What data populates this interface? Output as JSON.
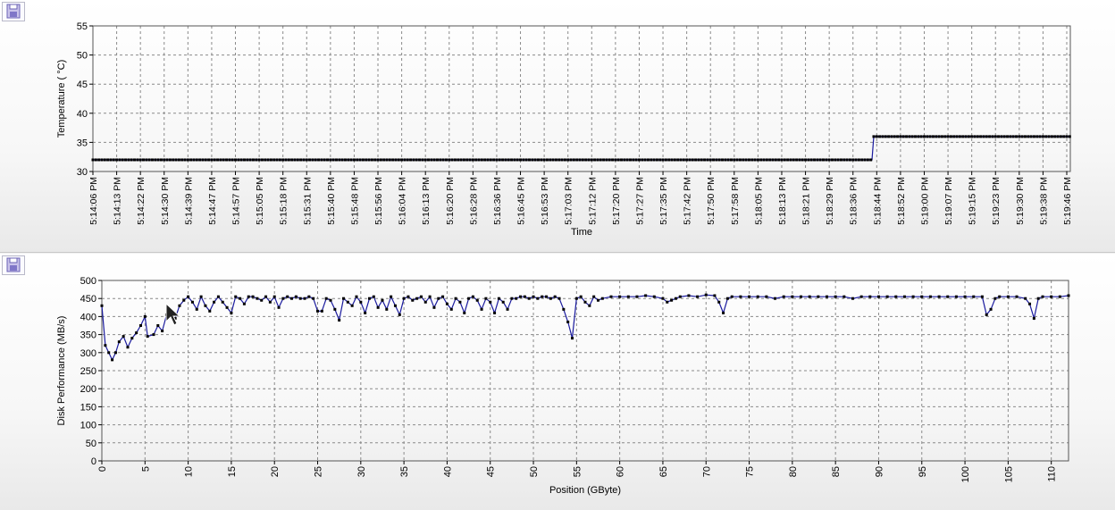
{
  "icons": {
    "save": "floppy-disk-icon"
  },
  "colors": {
    "line": "#1a1a9e",
    "marker": "#000000",
    "grid": "#8a8a8a",
    "background": "#f0f0f0"
  },
  "chart_data": [
    {
      "type": "line",
      "title": "",
      "xlabel": "Time",
      "ylabel": "Temperature ( °C)",
      "ylim": [
        30,
        55
      ],
      "yticks": [
        30,
        35,
        40,
        45,
        50,
        55
      ],
      "grid": true,
      "x": [
        "5:14:06 PM",
        "5:14:13 PM",
        "5:14:22 PM",
        "5:14:30 PM",
        "5:14:39 PM",
        "5:14:47 PM",
        "5:14:57 PM",
        "5:15:05 PM",
        "5:15:18 PM",
        "5:15:31 PM",
        "5:15:40 PM",
        "5:15:48 PM",
        "5:15:56 PM",
        "5:16:04 PM",
        "5:16:13 PM",
        "5:16:20 PM",
        "5:16:28 PM",
        "5:16:36 PM",
        "5:16:45 PM",
        "5:16:53 PM",
        "5:17:03 PM",
        "5:17:12 PM",
        "5:17:20 PM",
        "5:17:27 PM",
        "5:17:35 PM",
        "5:17:42 PM",
        "5:17:50 PM",
        "5:17:58 PM",
        "5:18:05 PM",
        "5:18:13 PM",
        "5:18:21 PM",
        "5:18:29 PM",
        "5:18:36 PM",
        "5:18:44 PM",
        "5:18:52 PM",
        "5:19:00 PM",
        "5:19:07 PM",
        "5:19:15 PM",
        "5:19:23 PM",
        "5:19:30 PM",
        "5:19:38 PM",
        "5:19:46 PM"
      ],
      "series": [
        {
          "values": [
            32,
            32,
            32,
            32,
            32,
            32,
            32,
            32,
            32,
            32,
            32,
            32,
            32,
            32,
            32,
            32,
            32,
            32,
            32,
            32,
            32,
            32,
            32,
            32,
            32,
            32,
            32,
            32,
            32,
            32,
            32,
            32,
            32,
            36,
            36,
            36,
            36,
            36,
            36,
            36,
            36,
            36
          ]
        }
      ]
    },
    {
      "type": "line",
      "title": "",
      "xlabel": "Position (GByte)",
      "ylabel": "Disk Performance (MB/s)",
      "xlim": [
        0,
        112
      ],
      "ylim": [
        0,
        500
      ],
      "xticks": [
        0,
        5,
        10,
        15,
        20,
        25,
        30,
        35,
        40,
        45,
        50,
        55,
        60,
        65,
        70,
        75,
        80,
        85,
        90,
        95,
        100,
        105,
        110
      ],
      "yticks": [
        0,
        50,
        100,
        150,
        200,
        250,
        300,
        350,
        400,
        450,
        500
      ],
      "grid": true,
      "series": [
        {
          "points": [
            [
              0,
              430
            ],
            [
              0.4,
              320
            ],
            [
              0.8,
              300
            ],
            [
              1.2,
              280
            ],
            [
              1.6,
              300
            ],
            [
              2,
              330
            ],
            [
              2.5,
              345
            ],
            [
              3,
              315
            ],
            [
              3.5,
              340
            ],
            [
              4,
              355
            ],
            [
              4.5,
              375
            ],
            [
              5,
              400
            ],
            [
              5.3,
              345
            ],
            [
              6,
              350
            ],
            [
              6.5,
              375
            ],
            [
              7,
              360
            ],
            [
              7.5,
              405
            ],
            [
              8,
              400
            ],
            [
              8.5,
              395
            ],
            [
              9,
              430
            ],
            [
              9.5,
              445
            ],
            [
              10,
              455
            ],
            [
              10.5,
              440
            ],
            [
              11,
              420
            ],
            [
              11.5,
              455
            ],
            [
              12,
              430
            ],
            [
              12.5,
              415
            ],
            [
              13,
              440
            ],
            [
              13.5,
              455
            ],
            [
              14,
              440
            ],
            [
              14.5,
              425
            ],
            [
              15,
              410
            ],
            [
              15.5,
              455
            ],
            [
              16,
              450
            ],
            [
              16.5,
              435
            ],
            [
              17,
              455
            ],
            [
              17.5,
              455
            ],
            [
              18,
              450
            ],
            [
              18.5,
              445
            ],
            [
              19,
              455
            ],
            [
              19.5,
              440
            ],
            [
              20,
              455
            ],
            [
              20.5,
              425
            ],
            [
              21,
              450
            ],
            [
              21.5,
              455
            ],
            [
              22,
              450
            ],
            [
              22.5,
              455
            ],
            [
              23,
              450
            ],
            [
              23.5,
              450
            ],
            [
              24,
              455
            ],
            [
              24.5,
              450
            ],
            [
              25,
              415
            ],
            [
              25.5,
              415
            ],
            [
              26,
              450
            ],
            [
              26.5,
              445
            ],
            [
              27,
              420
            ],
            [
              27.5,
              390
            ],
            [
              28,
              450
            ],
            [
              28.5,
              440
            ],
            [
              29,
              430
            ],
            [
              29.5,
              455
            ],
            [
              30,
              440
            ],
            [
              30.5,
              410
            ],
            [
              31,
              450
            ],
            [
              31.5,
              455
            ],
            [
              32,
              425
            ],
            [
              32.5,
              445
            ],
            [
              33,
              420
            ],
            [
              33.5,
              455
            ],
            [
              34,
              430
            ],
            [
              34.5,
              405
            ],
            [
              35,
              450
            ],
            [
              35.5,
              455
            ],
            [
              36,
              445
            ],
            [
              36.5,
              450
            ],
            [
              37,
              455
            ],
            [
              37.5,
              440
            ],
            [
              38,
              455
            ],
            [
              38.5,
              425
            ],
            [
              39,
              450
            ],
            [
              39.5,
              455
            ],
            [
              40,
              435
            ],
            [
              40.5,
              420
            ],
            [
              41,
              450
            ],
            [
              41.5,
              440
            ],
            [
              42,
              410
            ],
            [
              42.5,
              450
            ],
            [
              43,
              455
            ],
            [
              43.5,
              445
            ],
            [
              44,
              420
            ],
            [
              44.5,
              450
            ],
            [
              45,
              440
            ],
            [
              45.5,
              410
            ],
            [
              46,
              450
            ],
            [
              46.5,
              440
            ],
            [
              47,
              420
            ],
            [
              47.5,
              450
            ],
            [
              48,
              450
            ],
            [
              48.5,
              455
            ],
            [
              49,
              455
            ],
            [
              49.5,
              450
            ],
            [
              50,
              455
            ],
            [
              50.5,
              450
            ],
            [
              51,
              455
            ],
            [
              51.5,
              455
            ],
            [
              52,
              450
            ],
            [
              52.5,
              455
            ],
            [
              53,
              450
            ],
            [
              53.5,
              420
            ],
            [
              54,
              385
            ],
            [
              54.5,
              340
            ],
            [
              55,
              450
            ],
            [
              55.5,
              455
            ],
            [
              56,
              440
            ],
            [
              56.5,
              430
            ],
            [
              57,
              455
            ],
            [
              57.5,
              445
            ],
            [
              58,
              450
            ],
            [
              59,
              455
            ],
            [
              60,
              455
            ],
            [
              61,
              455
            ],
            [
              62,
              455
            ],
            [
              63,
              458
            ],
            [
              64,
              455
            ],
            [
              65,
              450
            ],
            [
              65.5,
              440
            ],
            [
              66,
              445
            ],
            [
              66.5,
              450
            ],
            [
              67,
              455
            ],
            [
              68,
              458
            ],
            [
              69,
              455
            ],
            [
              70,
              460
            ],
            [
              71,
              458
            ],
            [
              71.5,
              440
            ],
            [
              72,
              410
            ],
            [
              72.5,
              450
            ],
            [
              73,
              455
            ],
            [
              74,
              455
            ],
            [
              75,
              455
            ],
            [
              76,
              455
            ],
            [
              77,
              455
            ],
            [
              78,
              450
            ],
            [
              79,
              455
            ],
            [
              80,
              455
            ],
            [
              81,
              455
            ],
            [
              82,
              455
            ],
            [
              83,
              455
            ],
            [
              84,
              455
            ],
            [
              85,
              455
            ],
            [
              86,
              455
            ],
            [
              87,
              450
            ],
            [
              88,
              455
            ],
            [
              89,
              455
            ],
            [
              90,
              455
            ],
            [
              91,
              455
            ],
            [
              92,
              455
            ],
            [
              93,
              455
            ],
            [
              94,
              455
            ],
            [
              95,
              455
            ],
            [
              96,
              455
            ],
            [
              97,
              455
            ],
            [
              98,
              455
            ],
            [
              99,
              455
            ],
            [
              100,
              455
            ],
            [
              101,
              455
            ],
            [
              102,
              455
            ],
            [
              102.5,
              405
            ],
            [
              103,
              420
            ],
            [
              103.5,
              450
            ],
            [
              104,
              455
            ],
            [
              105,
              455
            ],
            [
              106,
              455
            ],
            [
              107,
              450
            ],
            [
              107.5,
              435
            ],
            [
              108,
              395
            ],
            [
              108.5,
              450
            ],
            [
              109,
              455
            ],
            [
              110,
              455
            ],
            [
              111,
              455
            ],
            [
              112,
              458
            ]
          ]
        }
      ]
    }
  ]
}
